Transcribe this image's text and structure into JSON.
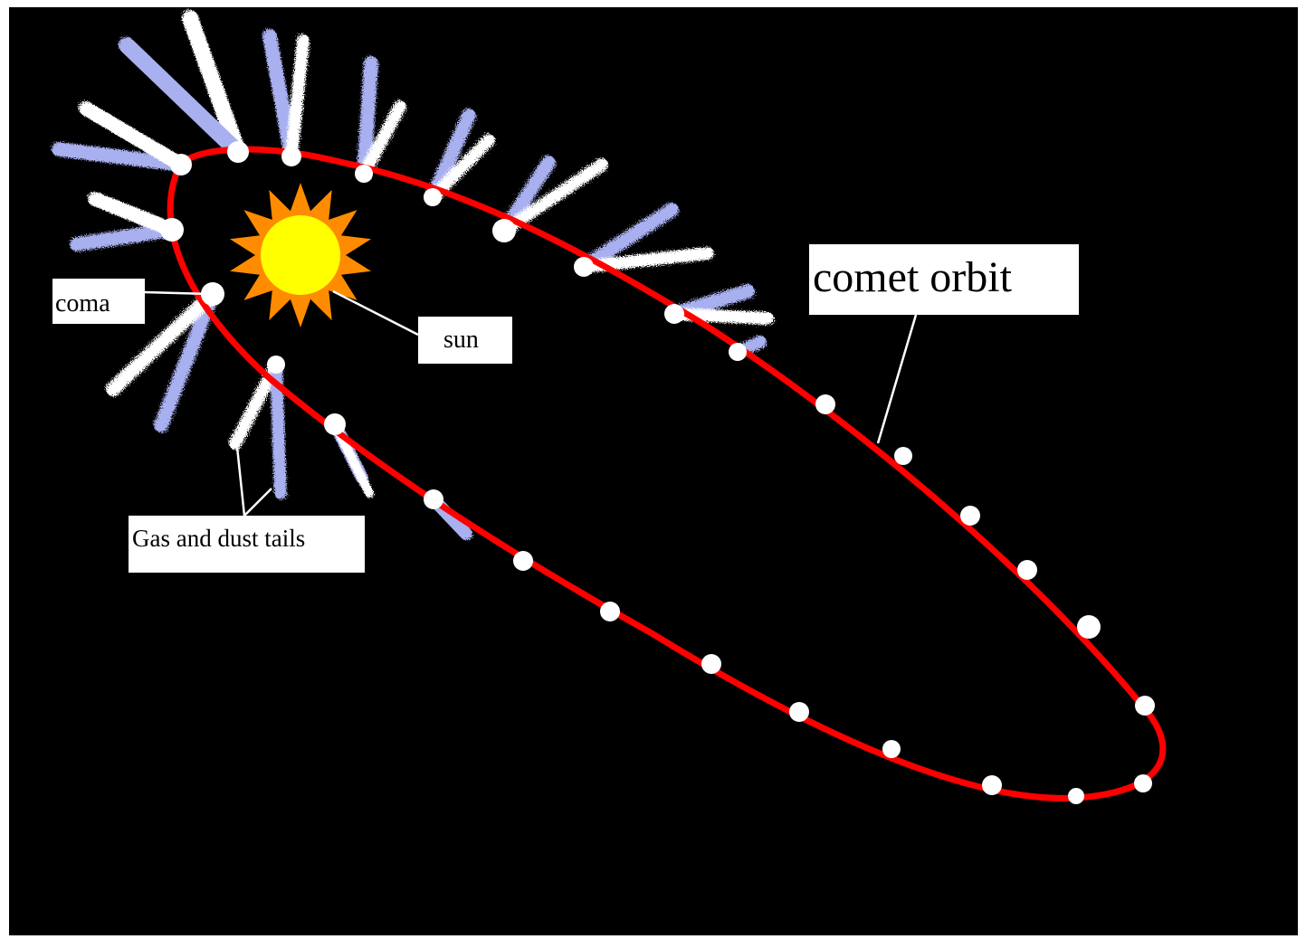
{
  "diagram": {
    "labels": {
      "comet_orbit": "comet orbit",
      "coma": "coma",
      "sun": "sun",
      "tails": "Gas and dust tails"
    }
  },
  "colors": {
    "background": "#000000",
    "frame": "#ffffff",
    "orbit": "#ff0000",
    "coma": "#ffffff",
    "dust_tail": "#ffffff",
    "gas_tail": "#a8b0f0",
    "sun_core": "#ffff00",
    "sun_rays": "#ff8c00"
  },
  "icons": {
    "sun": "sun-icon",
    "coma": "coma-dot-icon"
  }
}
